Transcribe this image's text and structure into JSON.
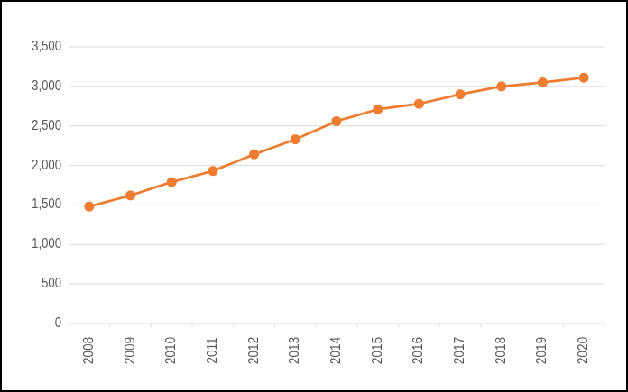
{
  "window": {
    "background_color": "#FFFFFF",
    "border_color": "#000000"
  },
  "chart_data": {
    "type": "line",
    "title": "",
    "xlabel": "",
    "ylabel": "",
    "categories": [
      "2008",
      "2009",
      "2010",
      "2011",
      "2012",
      "2013",
      "2014",
      "2015",
      "2016",
      "2017",
      "2018",
      "2019",
      "2020"
    ],
    "values": [
      1480,
      1620,
      1790,
      1930,
      2140,
      2330,
      2560,
      2710,
      2780,
      2900,
      3000,
      3050,
      3110
    ],
    "ylim": [
      0,
      3500
    ],
    "ytick_step": 500,
    "ytick_labels": [
      "0",
      "500",
      "1,000",
      "1,500",
      "2,000",
      "2,500",
      "3,000",
      "3,500"
    ],
    "grid": true,
    "legend_position": "none",
    "marker": "circle",
    "line_color": "#ED7D31",
    "marker_color": "#ED7D31",
    "gridline_color": "#D9D9D9",
    "axis_line_color": "#D9D9D9",
    "tick_label_color": "#595959"
  }
}
